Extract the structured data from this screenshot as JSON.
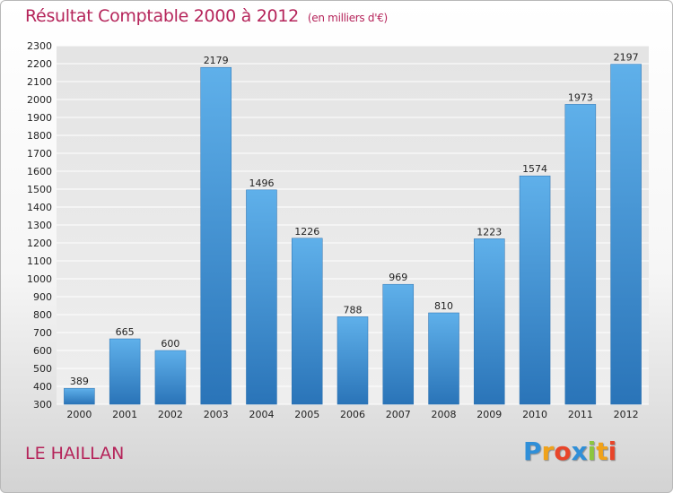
{
  "header": {
    "title": "Résultat Comptable 2000 à 2012",
    "subtitle": "(en milliers d'€)"
  },
  "footer": {
    "commune": "LE HAILLAN",
    "logo": {
      "letters": [
        "P",
        "r",
        "o",
        "x",
        "i",
        "t",
        "i"
      ],
      "colors": [
        "#2f8fd8",
        "#f0a21a",
        "#e8452a",
        "#2f8fd8",
        "#8cc63f",
        "#f0a21a",
        "#e8452a"
      ]
    }
  },
  "chart_data": {
    "type": "bar",
    "categories": [
      "2000",
      "2001",
      "2002",
      "2003",
      "2004",
      "2005",
      "2006",
      "2007",
      "2008",
      "2009",
      "2010",
      "2011",
      "2012"
    ],
    "values": [
      389,
      665,
      600,
      2179,
      1496,
      1226,
      788,
      969,
      810,
      1223,
      1574,
      1973,
      2197
    ],
    "title": "Résultat Comptable 2000 à 2012",
    "subtitle": "(en milliers d'€)",
    "ylim": [
      300,
      2300
    ],
    "ytick_step": 100,
    "grid": true,
    "bar_color": "#3d8fd3",
    "bar_color_light": "#5fb0ea",
    "bar_color_dark": "#2a74b8"
  }
}
